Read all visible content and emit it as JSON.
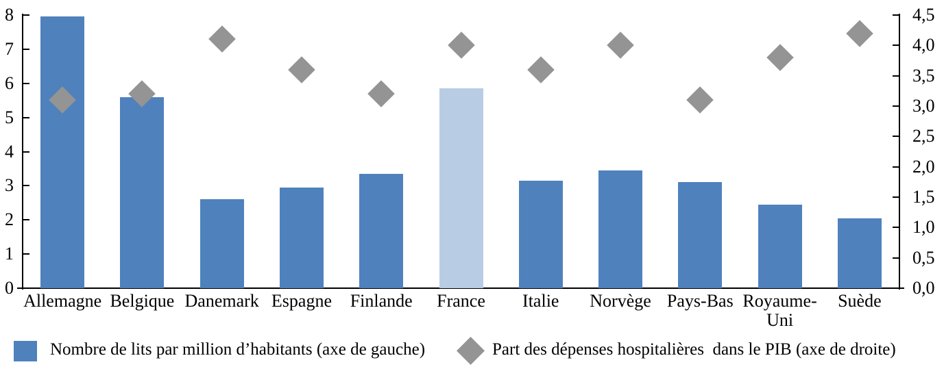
{
  "chart_data": {
    "type": "bar",
    "subtype": "combo-bar-scatter",
    "title": "",
    "categories": [
      "Allemagne",
      "Belgique",
      "Danemark",
      "Espagne",
      "Finlande",
      "France",
      "Italie",
      "Norvège",
      "Pays-Bas",
      "Royaume-Uni",
      "Suède"
    ],
    "series": [
      {
        "name": "Nombre de lits par million d’habitants (axe de gauche)",
        "type": "bar",
        "axis": "left",
        "values": [
          7.95,
          5.6,
          2.6,
          2.95,
          3.35,
          5.85,
          3.15,
          3.45,
          3.1,
          2.45,
          2.05
        ]
      },
      {
        "name": "Part des dépenses hospitalières  dans le PIB (axe de droite)",
        "type": "scatter",
        "marker": "diamond",
        "axis": "right",
        "values": [
          3.1,
          3.2,
          4.1,
          3.6,
          3.2,
          4.0,
          3.6,
          4.0,
          3.1,
          3.8,
          4.2
        ]
      }
    ],
    "highlight_category": "France",
    "left_axis": {
      "min": 0,
      "max": 8,
      "step": 1,
      "tick_labels": [
        "0",
        "1",
        "2",
        "3",
        "4",
        "5",
        "6",
        "7",
        "8"
      ]
    },
    "right_axis": {
      "min": 0,
      "max": 4.5,
      "step": 0.5,
      "tick_labels": [
        "0,0",
        "0,5",
        "1,0",
        "1,5",
        "2,0",
        "2,5",
        "3,0",
        "3,5",
        "4,0",
        "4,5"
      ]
    },
    "grid": false,
    "legend_position": "bottom",
    "colors": {
      "bar": "#4F81BD",
      "bar_highlight": "#B8CCE4",
      "diamond": "#949494",
      "axis": "#000000"
    }
  },
  "legend": {
    "items": [
      {
        "label": "Nombre de lits par million d’habitants (axe de gauche)",
        "marker": "square"
      },
      {
        "label": "Part des dépenses hospitalières  dans le PIB (axe de droite)",
        "marker": "diamond"
      }
    ]
  }
}
